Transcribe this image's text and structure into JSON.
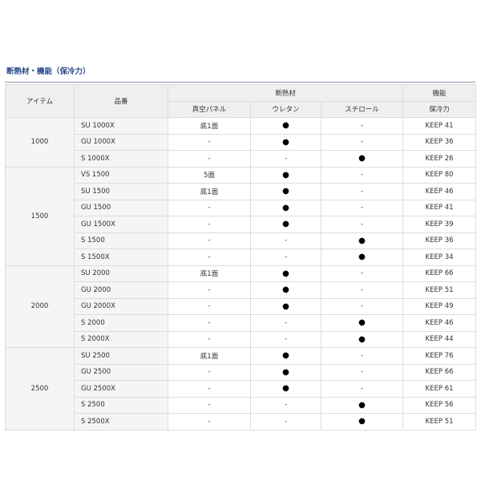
{
  "title": "断熱材・機能（保冷力）",
  "headers": {
    "item": "アイテム",
    "model": "品番",
    "insulation": "断熱材",
    "function": "機能",
    "vacuum_panel": "真空パネル",
    "urethane": "ウレタン",
    "styrofoam": "スチロール",
    "cold_retention": "保冷力"
  },
  "groups": [
    {
      "item": "1000",
      "rows": [
        [
          "SU 1000X",
          "底1面",
          "●",
          "-",
          "KEEP 41"
        ],
        [
          "GU 1000X",
          "-",
          "●",
          "-",
          "KEEP 36"
        ],
        [
          "S 1000X",
          "-",
          "-",
          "●",
          "KEEP 26"
        ]
      ]
    },
    {
      "item": "1500",
      "rows": [
        [
          "VS 1500",
          "5面",
          "●",
          "-",
          "KEEP 80"
        ],
        [
          "SU 1500",
          "底1面",
          "●",
          "-",
          "KEEP 46"
        ],
        [
          "GU 1500",
          "-",
          "●",
          "-",
          "KEEP 41"
        ],
        [
          "GU 1500X",
          "-",
          "●",
          "-",
          "KEEP 39"
        ],
        [
          "S 1500",
          "-",
          "-",
          "●",
          "KEEP 36"
        ],
        [
          "S 1500X",
          "-",
          "-",
          "●",
          "KEEP 34"
        ]
      ]
    },
    {
      "item": "2000",
      "rows": [
        [
          "SU 2000",
          "底1面",
          "●",
          "-",
          "KEEP 66"
        ],
        [
          "GU 2000",
          "-",
          "●",
          "-",
          "KEEP 51"
        ],
        [
          "GU 2000X",
          "-",
          "●",
          "-",
          "KEEP 49"
        ],
        [
          "S 2000",
          "-",
          "-",
          "●",
          "KEEP 46"
        ],
        [
          "S 2000X",
          "-",
          "-",
          "●",
          "KEEP 44"
        ]
      ]
    },
    {
      "item": "2500",
      "rows": [
        [
          "SU 2500",
          "底1面",
          "●",
          "-",
          "KEEP 76"
        ],
        [
          "GU 2500",
          "-",
          "●",
          "-",
          "KEEP 66"
        ],
        [
          "GU 2500X",
          "-",
          "●",
          "-",
          "KEEP 61"
        ],
        [
          "S 2500",
          "-",
          "-",
          "●",
          "KEEP 56"
        ],
        [
          "S 2500X",
          "-",
          "-",
          "●",
          "KEEP 51"
        ]
      ]
    }
  ]
}
